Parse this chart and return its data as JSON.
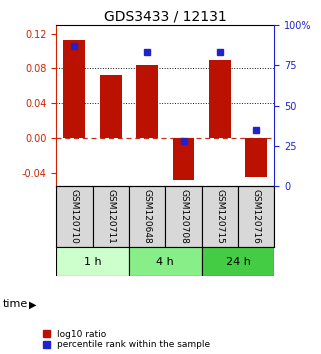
{
  "title": "GDS3433 / 12131",
  "samples": [
    "GSM120710",
    "GSM120711",
    "GSM120648",
    "GSM120708",
    "GSM120715",
    "GSM120716"
  ],
  "log10_ratio": [
    0.113,
    0.073,
    0.084,
    -0.048,
    0.09,
    -0.044
  ],
  "percentile_rank": [
    87,
    null,
    83,
    28,
    83,
    35
  ],
  "groups": [
    {
      "label": "1 h",
      "indices": [
        0,
        1
      ],
      "color": "#ccffcc"
    },
    {
      "label": "4 h",
      "indices": [
        2,
        3
      ],
      "color": "#88ee88"
    },
    {
      "label": "24 h",
      "indices": [
        4,
        5
      ],
      "color": "#44cc44"
    }
  ],
  "ylim_left": [
    -0.055,
    0.13
  ],
  "ylim_right": [
    0,
    100
  ],
  "yticks_left": [
    -0.04,
    0,
    0.04,
    0.08,
    0.12
  ],
  "yticks_right": [
    0,
    25,
    50,
    75,
    100
  ],
  "bar_color": "#bb1100",
  "dot_color": "#2222cc",
  "zero_line_color": "#bb3322",
  "grid_color": "#111111",
  "background_color": "#ffffff",
  "plot_bg": "#ffffff",
  "sample_bg": "#cccccc",
  "time_label": "time"
}
